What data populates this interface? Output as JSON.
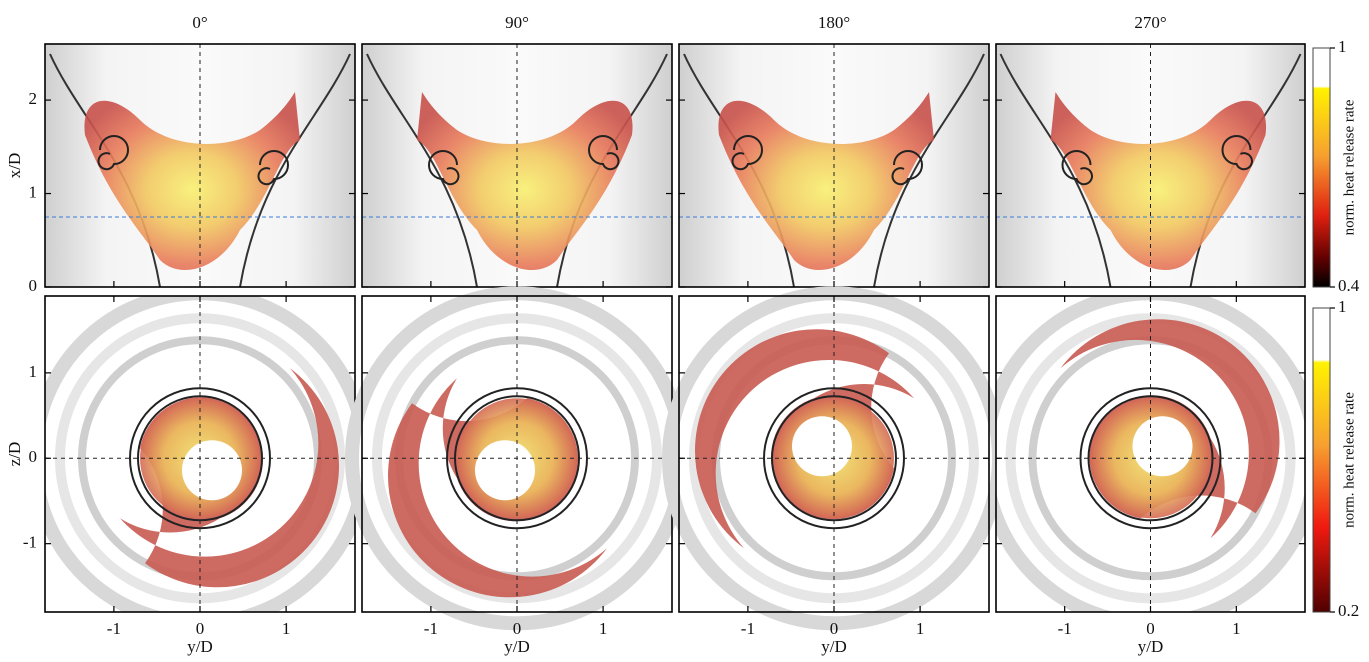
{
  "figure": {
    "columns": [
      "0°",
      "90°",
      "180°",
      "270°"
    ],
    "top": {
      "ylabel": "x/D",
      "ylim": [
        0,
        2.6
      ],
      "yticks": [
        0,
        1,
        2
      ]
    },
    "bottom": {
      "ylabel": "z/D",
      "xlabel": "y/D",
      "xlim": [
        -1.8,
        1.8
      ],
      "xticks": [
        -1,
        0,
        1
      ],
      "ylim": [
        -1.8,
        1.9
      ],
      "yticks": [
        -1,
        0,
        1
      ]
    },
    "colorbars": [
      {
        "label": "norm. heat release rate",
        "ticks": [
          0.4,
          1
        ]
      },
      {
        "label": "norm. heat release rate",
        "ticks": [
          0.2,
          1
        ]
      }
    ]
  }
}
